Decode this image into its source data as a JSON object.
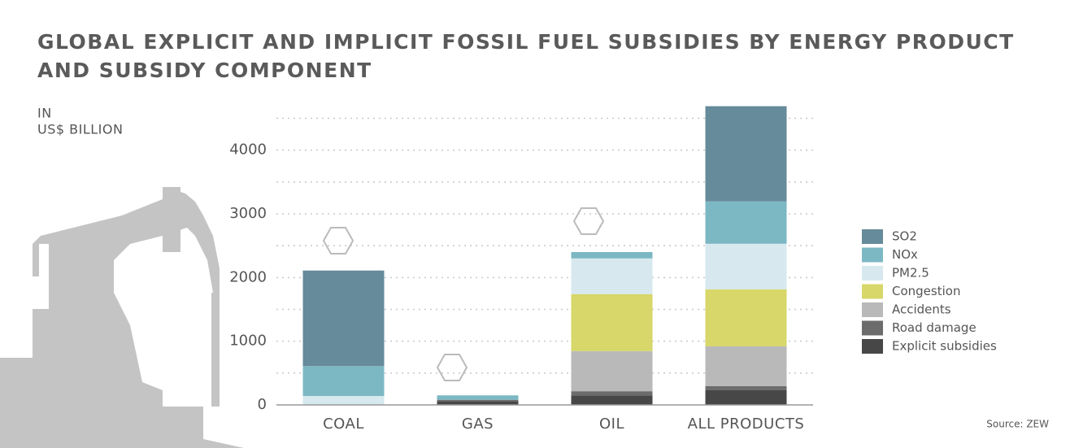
{
  "chart_data": {
    "type": "stacked_bar",
    "title": [
      "GLOBAL EXPLICIT AND IMPLICIT FOSSIL FUEL SUBSIDIES BY ENERGY PRODUCT",
      "AND SUBSIDY COMPONENT"
    ],
    "y_label": [
      "IN",
      "US$ BILLION"
    ],
    "source": "Source: ZEW",
    "categories": [
      "COAL",
      "GAS",
      "OIL",
      "ALL PRODUCTS"
    ],
    "series": [
      {
        "name": "Explicit subsidies",
        "color": "#474747",
        "values": [
          0,
          60,
          150,
          230
        ]
      },
      {
        "name": "Road damage",
        "color": "#6c6c6c",
        "values": [
          0,
          20,
          65,
          65
        ]
      },
      {
        "name": "Accidents",
        "color": "#b9b9b9",
        "values": [
          0,
          0,
          630,
          625
        ]
      },
      {
        "name": "Congestion",
        "color": "#d7d76a",
        "values": [
          0,
          0,
          895,
          895
        ]
      },
      {
        "name": "PM2.5",
        "color": "#d7e9ef",
        "values": [
          140,
          0,
          560,
          715
        ]
      },
      {
        "name": "NOx",
        "color": "#7cb8c3",
        "values": [
          470,
          70,
          100,
          665
        ]
      },
      {
        "name": "SO2",
        "color": "#668b9a",
        "values": [
          1500,
          0,
          0,
          1495
        ]
      }
    ],
    "ylim": [
      0,
      4800
    ],
    "yticks": [
      0,
      1000,
      2000,
      3000,
      4000
    ],
    "ygridlines": [
      500,
      1000,
      1500,
      2000,
      2500,
      3000,
      3500,
      4000,
      4500
    ],
    "grid": true,
    "legend": "right"
  }
}
